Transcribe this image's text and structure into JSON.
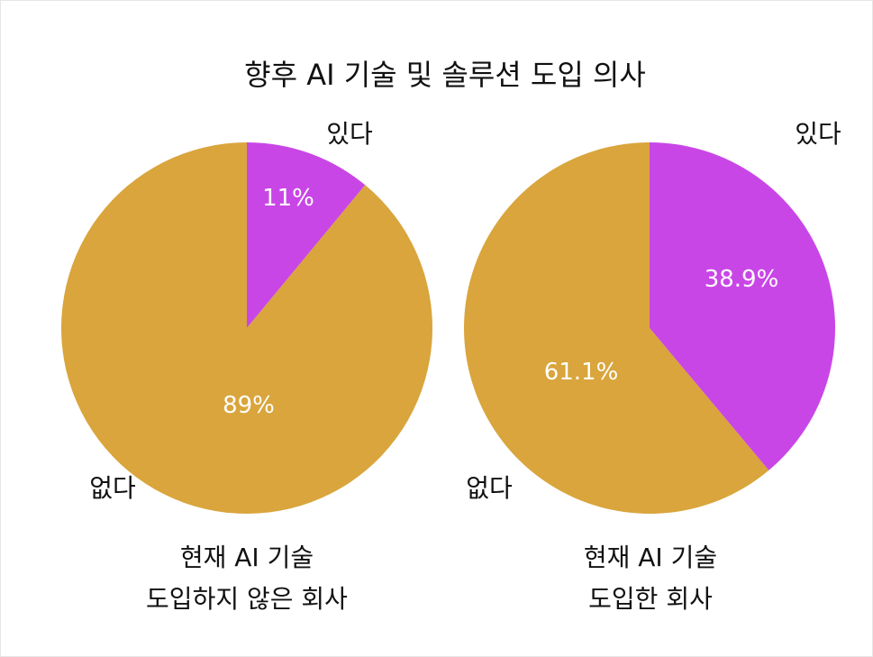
{
  "title": "향후 AI 기술 및 솔루션 도입 의사",
  "colors": {
    "yes": "#c946e6",
    "no": "#d9a53c",
    "label_inside": "#ffffff",
    "label_outside": "#111111"
  },
  "chart_data": [
    {
      "type": "pie",
      "title": "향후 AI 기술 및 솔루션 도입 의사",
      "caption": [
        "현재 AI 기술",
        "도입하지 않은 회사"
      ],
      "slices": [
        {
          "label": "있다",
          "value": 11,
          "value_label": "11%"
        },
        {
          "label": "없다",
          "value": 89,
          "value_label": "89%"
        }
      ]
    },
    {
      "type": "pie",
      "title": "향후 AI 기술 및 솔루션 도입 의사",
      "caption": [
        "현재 AI 기술",
        "도입한 회사"
      ],
      "slices": [
        {
          "label": "있다",
          "value": 38.9,
          "value_label": "38.9%"
        },
        {
          "label": "없다",
          "value": 61.1,
          "value_label": "61.1%"
        }
      ]
    }
  ]
}
